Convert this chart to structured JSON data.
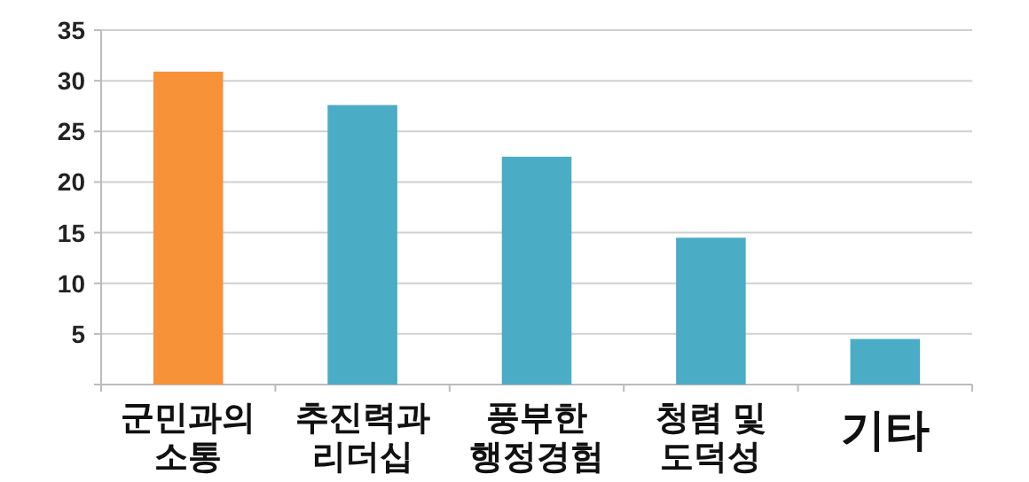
{
  "chart_data": {
    "type": "bar",
    "categories": [
      "군민과의\n소통",
      "추진력과\n리더십",
      "풍부한\n행정경험",
      "청렴 및\n도덕성",
      "기타"
    ],
    "values": [
      30.9,
      27.6,
      22.5,
      14.5,
      4.5
    ],
    "colors": [
      "#f79239",
      "#4bacc6",
      "#4bacc6",
      "#4bacc6",
      "#4bacc6"
    ],
    "ylim": [
      0,
      35
    ],
    "yticks": [
      {
        "value": 0,
        "label": null
      },
      5,
      10,
      15,
      20,
      25,
      30,
      35
    ],
    "grid": "y"
  }
}
